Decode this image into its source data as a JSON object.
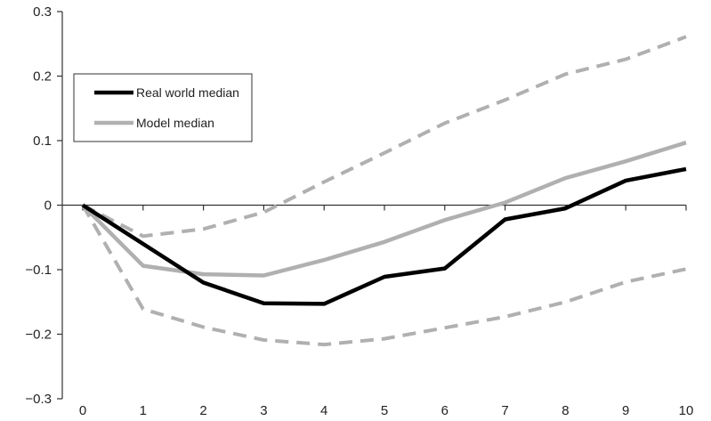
{
  "chart_data": {
    "type": "line",
    "title": "",
    "xlabel": "",
    "ylabel": "",
    "x": [
      0,
      1,
      2,
      3,
      4,
      5,
      6,
      7,
      8,
      9,
      10
    ],
    "xlim": [
      0,
      10
    ],
    "ylim": [
      -0.3,
      0.3
    ],
    "x_ticks": [
      "0",
      "1",
      "2",
      "3",
      "4",
      "5",
      "6",
      "7",
      "8",
      "9",
      "10"
    ],
    "y_ticks": [
      {
        "value": 0.3,
        "label": "0.3"
      },
      {
        "value": 0.2,
        "label": "0.2"
      },
      {
        "value": 0.1,
        "label": "0.1"
      },
      {
        "value": 0,
        "label": "0"
      },
      {
        "value": -0.1,
        "label": "−0.1"
      },
      {
        "value": -0.2,
        "label": "−0.2"
      },
      {
        "value": -0.3,
        "label": "−0.3"
      }
    ],
    "grid": false,
    "legend": {
      "placement": "upper-left",
      "entries": [
        {
          "label": "Real world median",
          "series": "real"
        },
        {
          "label": "Model median",
          "series": "model"
        }
      ]
    },
    "series": [
      {
        "key": "real",
        "name": "Real world median",
        "color": "#000000",
        "style": "solid",
        "values": [
          0,
          -0.06,
          -0.12,
          -0.152,
          -0.153,
          -0.111,
          -0.098,
          -0.022,
          -0.005,
          0.038,
          0.056
        ]
      },
      {
        "key": "model",
        "name": "Model median",
        "color": "#b0b0b0",
        "style": "solid",
        "values": [
          0,
          -0.094,
          -0.107,
          -0.109,
          -0.085,
          -0.057,
          -0.023,
          0.004,
          0.042,
          0.068,
          0.097
        ]
      },
      {
        "key": "upper",
        "color": "#b0b0b0",
        "style": "dashed",
        "values": [
          0,
          -0.048,
          -0.037,
          -0.011,
          0.036,
          0.081,
          0.127,
          0.163,
          0.203,
          0.226,
          0.261
        ]
      },
      {
        "key": "lower",
        "color": "#b0b0b0",
        "style": "dashed",
        "values": [
          0,
          -0.161,
          -0.189,
          -0.209,
          -0.216,
          -0.207,
          -0.19,
          -0.173,
          -0.15,
          -0.119,
          -0.099
        ]
      }
    ]
  }
}
